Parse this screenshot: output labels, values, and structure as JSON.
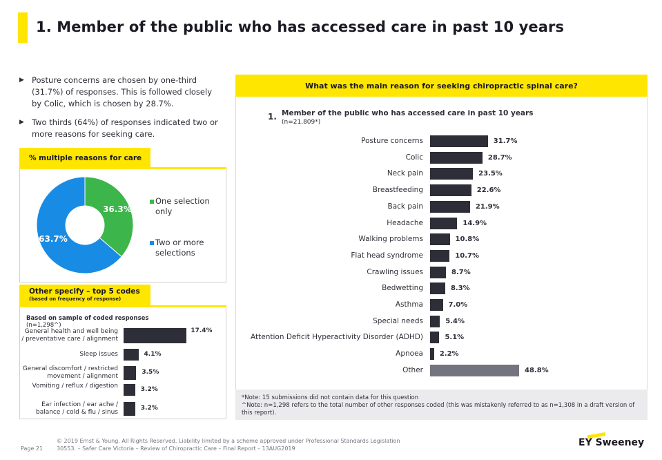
{
  "page_title": "1. Member of the public who has accessed care in past 10 years",
  "bullets": [
    "Posture concerns are chosen by one-third (31.7%) of responses. This is followed closely by Colic, which is chosen by 28.7%.",
    "Two thirds (64%) of responses indicated two or more reasons for seeking care."
  ],
  "multiple_panel": {
    "title": "% multiple reasons for care",
    "legend": [
      "One selection only",
      "Two or more selections"
    ],
    "labels": [
      "36.3%",
      "63.7%"
    ]
  },
  "other_panel": {
    "title": "Other specify – top 5 codes",
    "subtitle": "(based on frequency of response)",
    "sample_note": "Based on sample of coded responses",
    "sample_n": "(n=1,298^)"
  },
  "main_panel": {
    "header": "What was the main reason for seeking chiropractic spinal care?",
    "chart_number": "1.",
    "chart_title": "Member of the public who has accessed care in past 10 years",
    "chart_n": "(n=21,809*)",
    "notes": [
      "*Note: 15 submissions did not contain data for this question",
      "^Note: n=1,298 refers to the total number of other responses coded (this was mistakenly referred to as n=1,308 in a draft version of this report)."
    ]
  },
  "footer": {
    "page": "Page 21",
    "copyright": "© 2019 Ernst & Young. All Rights Reserved. Liability limited by a scheme approved under Professional Standards Legislation",
    "doc_ref": "30553. – Safer Care Victoria – Review of Chiropractic Care – Final Report – 13AUG2019",
    "logo": "EY Sweeney"
  },
  "chart_data": [
    {
      "type": "pie",
      "categories": [
        "One selection only",
        "Two or more selections"
      ],
      "values": [
        36.3,
        63.7
      ],
      "colors": [
        "#3cb54a",
        "#188ce5"
      ],
      "title": "% multiple reasons for care"
    },
    {
      "type": "bar",
      "orientation": "horizontal",
      "title": "Other specify – top 5 codes",
      "categories": [
        "General health and well being / preventative care / alignment",
        "Sleep issues",
        "General discomfort / restricted movement / alignment",
        "Vomiting / reflux / digestion",
        "Ear infection / ear ache / balance / cold & flu / sinus"
      ],
      "values": [
        17.4,
        4.1,
        3.5,
        3.2,
        3.2
      ],
      "value_labels": [
        "17.4%",
        "4.1%",
        "3.5%",
        "3.2%",
        "3.2%"
      ],
      "xlim": [
        0,
        20
      ]
    },
    {
      "type": "bar",
      "orientation": "horizontal",
      "title": "What was the main reason for seeking chiropractic spinal care?",
      "categories": [
        "Posture concerns",
        "Colic",
        "Neck pain",
        "Breastfeeding",
        "Back pain",
        "Headache",
        "Walking problems",
        "Flat head syndrome",
        "Crawling issues",
        "Bedwetting",
        "Asthma",
        "Special needs",
        "Attention Deficit Hyperactivity Disorder (ADHD)",
        "Apnoea",
        "Other"
      ],
      "values": [
        31.7,
        28.7,
        23.5,
        22.6,
        21.9,
        14.9,
        10.8,
        10.7,
        8.7,
        8.3,
        7.0,
        5.4,
        5.1,
        2.2,
        48.8
      ],
      "value_labels": [
        "31.7%",
        "28.7%",
        "23.5%",
        "22.6%",
        "21.9%",
        "14.9%",
        "10.8%",
        "10.7%",
        "8.7%",
        "8.3%",
        "7.0%",
        "5.4%",
        "5.1%",
        "2.2%",
        "48.8%"
      ],
      "colors": {
        "default": "#2e2e38",
        "other": "#747480"
      },
      "xlim": [
        0,
        50
      ]
    }
  ]
}
